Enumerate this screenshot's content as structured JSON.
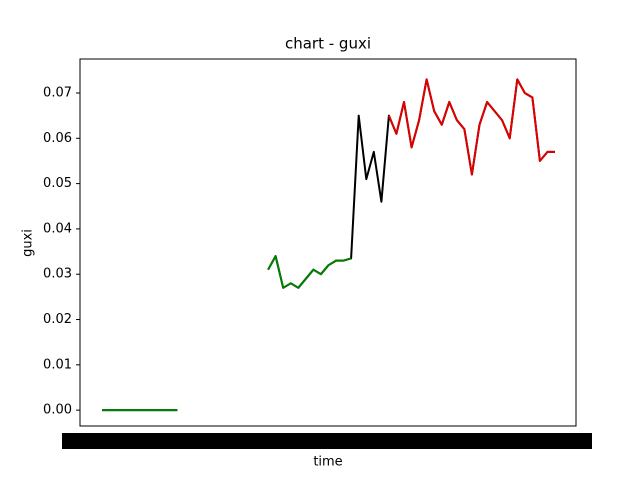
{
  "chart_data": {
    "type": "line",
    "title": "chart - guxi",
    "x_label": "time",
    "y_label": "guxi",
    "categories": [
      null,
      null,
      null,
      null,
      null,
      null,
      null,
      null,
      null,
      null,
      null,
      null,
      null,
      null,
      null,
      null,
      null,
      null,
      null,
      null,
      null,
      null,
      null,
      null,
      null,
      null,
      null,
      null,
      null,
      null,
      null,
      null,
      null,
      null,
      null,
      null,
      null,
      null,
      null,
      null,
      null,
      null,
      null,
      null,
      null,
      null,
      null,
      null,
      null,
      null,
      null,
      null,
      null,
      null,
      null,
      null,
      null,
      null,
      null,
      null,
      null
    ],
    "series": [
      {
        "color": "#000000",
        "values": [
          0,
          0,
          0,
          0,
          0,
          0,
          0,
          0,
          0,
          0,
          0,
          null,
          null,
          null,
          null,
          null,
          null,
          null,
          null,
          null,
          null,
          null,
          0.031,
          0.034,
          0.027,
          0.028,
          0.027,
          0.029,
          0.031,
          0.03,
          0.032,
          0.033,
          0.033,
          0.0335,
          0.065,
          0.051,
          0.057,
          0.046,
          0.065,
          0.061,
          0.068,
          0.058,
          0.064,
          0.073,
          0.066,
          0.063,
          0.068,
          0.064,
          0.062,
          0.052,
          0.063,
          0.068,
          0.066,
          0.064,
          0.06,
          0.073,
          0.07,
          0.069,
          0.055,
          0.057,
          0.057
        ]
      },
      {
        "color": "#008000",
        "values": [
          0,
          0,
          0,
          0,
          0,
          0,
          0,
          0,
          0,
          0,
          0,
          null,
          null,
          null,
          null,
          null,
          null,
          null,
          null,
          null,
          null,
          null,
          0.031,
          0.034,
          0.027,
          0.028,
          0.027,
          0.029,
          0.031,
          0.03,
          0.032,
          0.033,
          0.033,
          0.0335,
          null,
          null,
          null,
          null,
          null,
          null,
          null,
          null,
          null,
          null,
          null,
          null,
          null,
          null,
          null,
          null,
          null,
          null,
          null,
          null,
          null,
          null,
          null,
          null,
          null,
          null,
          null
        ]
      },
      {
        "color": "#e00000",
        "values": [
          null,
          null,
          null,
          null,
          null,
          null,
          null,
          null,
          null,
          null,
          null,
          null,
          null,
          null,
          null,
          null,
          null,
          null,
          null,
          null,
          null,
          null,
          null,
          null,
          null,
          null,
          null,
          null,
          null,
          null,
          null,
          null,
          null,
          null,
          null,
          null,
          null,
          null,
          0.065,
          0.061,
          0.068,
          0.058,
          0.064,
          0.073,
          0.066,
          0.063,
          0.068,
          0.064,
          0.062,
          0.052,
          0.063,
          0.068,
          0.066,
          0.064,
          0.06,
          0.073,
          0.07,
          0.069,
          0.055,
          0.057,
          0.057
        ]
      }
    ],
    "ylim": [
      -0.0035,
      0.0775
    ],
    "yticks": [
      {
        "value": 0,
        "label": "0.00"
      },
      {
        "value": 0.01,
        "label": "0.01"
      },
      {
        "value": 0.02,
        "label": "0.02"
      },
      {
        "value": 0.03,
        "label": "0.03"
      },
      {
        "value": 0.04,
        "label": "0.04"
      },
      {
        "value": 0.05,
        "label": "0.05"
      },
      {
        "value": 0.06,
        "label": "0.06"
      },
      {
        "value": 0.07,
        "label": "0.07"
      }
    ]
  }
}
